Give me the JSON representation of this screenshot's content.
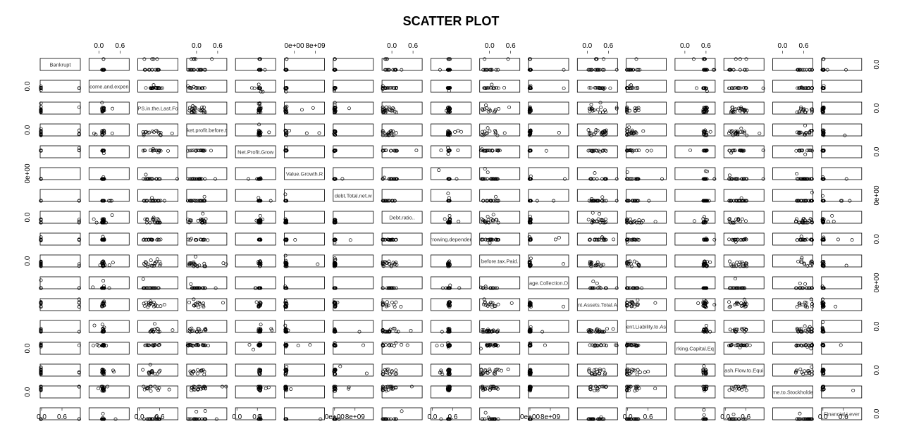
{
  "chart_data": {
    "type": "scatter",
    "title": "SCATTER PLOT",
    "variables": [
      "Bankrupt",
      "come.and.expen",
      "PS.in.the.Last.Fo",
      "ket.profit.before.t",
      "Net.Profit.Grow",
      "Value.Growth.R",
      "debt.Total.net.w",
      "Debt.ratio..",
      "rrowing.depender",
      "before.tax.Paid.",
      "age.Collection.D",
      "nt.Assets.Total.A",
      "ent.Liability.to.As",
      "rking.Capital.Eq",
      "ash.Flow.to.Equi",
      "me.to.Stockholde",
      "Financial.Lever"
    ],
    "top_axis_ticks": [
      {
        "panel": 1,
        "labels": [
          "0.0",
          "0.6"
        ]
      },
      {
        "panel": 3,
        "labels": [
          "0.0",
          "0.6"
        ]
      },
      {
        "panel": 5,
        "labels": [
          "0e+00",
          "8e+09"
        ]
      },
      {
        "panel": 7,
        "labels": [
          "0.0",
          "0.6"
        ]
      },
      {
        "panel": 9,
        "labels": [
          "0.0",
          "0.6"
        ]
      },
      {
        "panel": 11,
        "labels": [
          "0.0",
          "0.6"
        ]
      },
      {
        "panel": 13,
        "labels": [
          "0.0",
          "0.6"
        ]
      },
      {
        "panel": 15,
        "labels": [
          "0.0",
          "0.6"
        ]
      }
    ],
    "bottom_axis_ticks": [
      {
        "panel": 0,
        "labels": [
          "0.0",
          "0.6"
        ]
      },
      {
        "panel": 2,
        "labels": [
          "0.0",
          "0.6"
        ]
      },
      {
        "panel": 4,
        "labels": [
          "0.0",
          "0.6"
        ]
      },
      {
        "panel": 6,
        "labels": [
          "0e+00",
          "8e+09"
        ]
      },
      {
        "panel": 8,
        "labels": [
          "0.0",
          "0.6"
        ]
      },
      {
        "panel": 10,
        "labels": [
          "0e+00",
          "8e+09"
        ]
      },
      {
        "panel": 12,
        "labels": [
          "0.0",
          "0.6"
        ]
      },
      {
        "panel": 14,
        "labels": [
          "0.0",
          "0.6"
        ]
      },
      {
        "panel": 16,
        "labels": [
          "0.0",
          "0.6"
        ]
      }
    ],
    "left_axis_ticks": [
      {
        "panel": 1,
        "labels": [
          "0.0"
        ]
      },
      {
        "panel": 3,
        "labels": [
          "0.0"
        ]
      },
      {
        "panel": 5,
        "labels": [
          "0e+00"
        ]
      },
      {
        "panel": 7,
        "labels": [
          "0.0"
        ]
      },
      {
        "panel": 9,
        "labels": [
          "0.0"
        ]
      },
      {
        "panel": 13,
        "labels": [
          "0.0"
        ]
      },
      {
        "panel": 15,
        "labels": [
          "0.0"
        ]
      }
    ],
    "right_axis_ticks": [
      {
        "panel": 0,
        "labels": [
          "0.0"
        ]
      },
      {
        "panel": 2,
        "labels": [
          "0.0"
        ]
      },
      {
        "panel": 4,
        "labels": [
          "0.0"
        ]
      },
      {
        "panel": 6,
        "labels": [
          "0e+00"
        ]
      },
      {
        "panel": 8,
        "labels": [
          "0.0"
        ]
      },
      {
        "panel": 10,
        "labels": [
          "0e+00"
        ]
      },
      {
        "panel": 12,
        "labels": [
          "0.0"
        ]
      },
      {
        "panel": 14,
        "labels": [
          "0.0"
        ]
      },
      {
        "panel": 16,
        "labels": [
          "0.0"
        ]
      }
    ],
    "point_style": "open-circle",
    "point_color": "#000000"
  }
}
